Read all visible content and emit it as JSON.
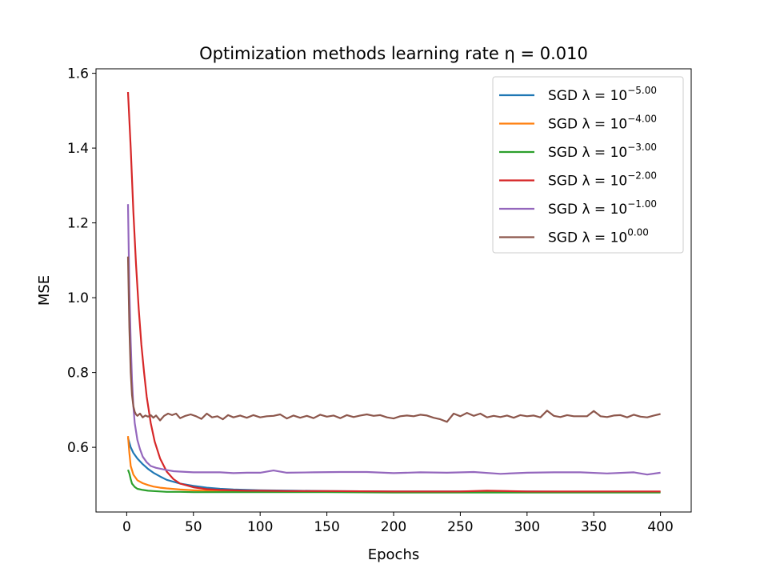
{
  "chart_data": {
    "type": "line",
    "title": "Optimization methods learning rate η = 0.010",
    "xlabel": "Epochs",
    "ylabel": "MSE",
    "xlim": [
      -23,
      423
    ],
    "ylim": [
      0.427,
      1.612
    ],
    "xticks": [
      0,
      50,
      100,
      150,
      200,
      250,
      300,
      350,
      400
    ],
    "yticks": [
      0.6,
      0.8,
      1.0,
      1.2,
      1.4,
      1.6
    ],
    "ytick_labels": [
      "0.6",
      "0.8",
      "1.0",
      "1.2",
      "1.4",
      "1.6"
    ],
    "grid": false,
    "legend_position": "top-right",
    "series": [
      {
        "name": "SGD λ = 10^-5.00",
        "label_base": "SGD λ = 10",
        "label_exp": "−5.00",
        "color": "#1f77b4",
        "x": [
          1,
          3,
          5,
          8,
          12,
          16,
          20,
          25,
          30,
          40,
          50,
          60,
          70,
          80,
          100,
          125,
          150,
          200,
          250,
          300,
          350,
          400
        ],
        "y": [
          0.625,
          0.6,
          0.585,
          0.57,
          0.555,
          0.542,
          0.532,
          0.522,
          0.513,
          0.503,
          0.497,
          0.492,
          0.489,
          0.487,
          0.485,
          0.484,
          0.483,
          0.482,
          0.482,
          0.482,
          0.481,
          0.481
        ]
      },
      {
        "name": "SGD λ = 10^-4.00",
        "label_base": "SGD λ = 10",
        "label_exp": "−4.00",
        "color": "#ff7f0e",
        "x": [
          1,
          2,
          3,
          5,
          8,
          12,
          16,
          20,
          25,
          30,
          40,
          50,
          60,
          80,
          100,
          150,
          200,
          250,
          300,
          350,
          400
        ],
        "y": [
          0.63,
          0.585,
          0.55,
          0.527,
          0.512,
          0.504,
          0.499,
          0.495,
          0.492,
          0.49,
          0.487,
          0.485,
          0.484,
          0.483,
          0.482,
          0.481,
          0.481,
          0.481,
          0.481,
          0.481,
          0.481
        ]
      },
      {
        "name": "SGD λ = 10^-3.00",
        "label_base": "SGD λ = 10",
        "label_exp": "−3.00",
        "color": "#2ca02c",
        "x": [
          1,
          2,
          3,
          4,
          6,
          8,
          12,
          16,
          20,
          25,
          30,
          40,
          50,
          100,
          150,
          200,
          250,
          300,
          350,
          400
        ],
        "y": [
          0.54,
          0.53,
          0.515,
          0.503,
          0.494,
          0.489,
          0.486,
          0.484,
          0.483,
          0.482,
          0.481,
          0.481,
          0.48,
          0.48,
          0.48,
          0.479,
          0.479,
          0.479,
          0.479,
          0.479
        ]
      },
      {
        "name": "SGD λ = 10^-2.00",
        "label_base": "SGD λ = 10",
        "label_exp": "−2.00",
        "color": "#d62728",
        "x": [
          1,
          3,
          5,
          7,
          9,
          11,
          13,
          15,
          18,
          21,
          25,
          30,
          35,
          40,
          50,
          60,
          70,
          80,
          90,
          100,
          120,
          150,
          200,
          250,
          270,
          300,
          350,
          400
        ],
        "y": [
          1.55,
          1.4,
          1.23,
          1.09,
          0.97,
          0.875,
          0.8,
          0.735,
          0.665,
          0.615,
          0.57,
          0.535,
          0.515,
          0.503,
          0.493,
          0.488,
          0.486,
          0.485,
          0.484,
          0.484,
          0.483,
          0.483,
          0.482,
          0.482,
          0.484,
          0.482,
          0.482,
          0.482
        ]
      },
      {
        "name": "SGD λ = 10^-1.00",
        "label_base": "SGD λ = 10",
        "label_exp": "−1.00",
        "color": "#9467bd",
        "x": [
          1,
          2,
          3,
          4,
          5,
          6,
          8,
          10,
          12,
          15,
          18,
          22,
          26,
          30,
          35,
          40,
          50,
          60,
          70,
          80,
          90,
          100,
          110,
          120,
          140,
          160,
          180,
          200,
          220,
          240,
          260,
          280,
          300,
          320,
          340,
          360,
          380,
          390,
          400
        ],
        "y": [
          1.25,
          1.02,
          0.88,
          0.78,
          0.71,
          0.665,
          0.62,
          0.595,
          0.575,
          0.56,
          0.55,
          0.545,
          0.542,
          0.539,
          0.536,
          0.535,
          0.533,
          0.533,
          0.533,
          0.531,
          0.532,
          0.532,
          0.538,
          0.532,
          0.533,
          0.534,
          0.534,
          0.531,
          0.533,
          0.532,
          0.534,
          0.529,
          0.532,
          0.533,
          0.533,
          0.53,
          0.533,
          0.527,
          0.532
        ]
      },
      {
        "name": "SGD λ = 10^0.00",
        "label_base": "SGD λ = 10",
        "label_exp": "0.00",
        "color": "#8c564b",
        "x": [
          1,
          2,
          3,
          4,
          5,
          6,
          7,
          8,
          10,
          12,
          14,
          16,
          18,
          20,
          22,
          25,
          28,
          31,
          34,
          37,
          40,
          44,
          48,
          52,
          56,
          60,
          64,
          68,
          72,
          76,
          80,
          85,
          90,
          95,
          100,
          105,
          110,
          115,
          120,
          125,
          130,
          135,
          140,
          145,
          150,
          155,
          160,
          165,
          170,
          175,
          180,
          185,
          190,
          195,
          200,
          205,
          210,
          215,
          220,
          225,
          230,
          235,
          240,
          245,
          250,
          255,
          260,
          265,
          270,
          275,
          280,
          285,
          290,
          295,
          300,
          305,
          310,
          315,
          320,
          325,
          330,
          335,
          340,
          345,
          350,
          355,
          360,
          365,
          370,
          375,
          380,
          385,
          390,
          395,
          400
        ],
        "y": [
          1.11,
          0.92,
          0.8,
          0.74,
          0.71,
          0.695,
          0.688,
          0.684,
          0.69,
          0.68,
          0.685,
          0.682,
          0.686,
          0.679,
          0.685,
          0.672,
          0.684,
          0.69,
          0.686,
          0.69,
          0.678,
          0.684,
          0.688,
          0.683,
          0.676,
          0.69,
          0.68,
          0.683,
          0.675,
          0.686,
          0.68,
          0.685,
          0.679,
          0.686,
          0.68,
          0.683,
          0.684,
          0.688,
          0.677,
          0.685,
          0.679,
          0.684,
          0.678,
          0.687,
          0.682,
          0.685,
          0.678,
          0.686,
          0.681,
          0.685,
          0.688,
          0.684,
          0.686,
          0.68,
          0.677,
          0.683,
          0.685,
          0.683,
          0.687,
          0.685,
          0.679,
          0.675,
          0.668,
          0.69,
          0.683,
          0.692,
          0.684,
          0.69,
          0.68,
          0.684,
          0.681,
          0.685,
          0.679,
          0.686,
          0.683,
          0.685,
          0.68,
          0.698,
          0.684,
          0.681,
          0.686,
          0.683,
          0.683,
          0.683,
          0.697,
          0.683,
          0.681,
          0.685,
          0.686,
          0.68,
          0.687,
          0.682,
          0.68,
          0.685,
          0.689
        ]
      }
    ]
  }
}
